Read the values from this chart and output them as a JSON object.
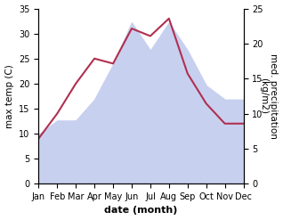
{
  "months": [
    "Jan",
    "Feb",
    "Mar",
    "Apr",
    "May",
    "Jun",
    "Jul",
    "Aug",
    "Sep",
    "Oct",
    "Nov",
    "Dec"
  ],
  "temp": [
    9,
    14,
    20,
    25,
    24,
    31,
    29.5,
    33,
    22,
    16,
    12,
    12
  ],
  "precip": [
    7,
    9,
    9,
    12,
    17,
    23,
    19,
    23,
    19,
    14,
    12,
    12
  ],
  "temp_color": "#b03050",
  "precip_fill_color": "#c8d0f0",
  "ylabel_left": "max temp (C)",
  "ylabel_right": "med. precipitation\n(kg/m2)",
  "xlabel": "date (month)",
  "ylim_left": [
    0,
    35
  ],
  "ylim_right": [
    0,
    25
  ],
  "yticks_left": [
    0,
    5,
    10,
    15,
    20,
    25,
    30,
    35
  ],
  "yticks_right": [
    0,
    5,
    10,
    15,
    20,
    25
  ],
  "label_fontsize": 7.5,
  "tick_fontsize": 7,
  "xlabel_fontsize": 8
}
